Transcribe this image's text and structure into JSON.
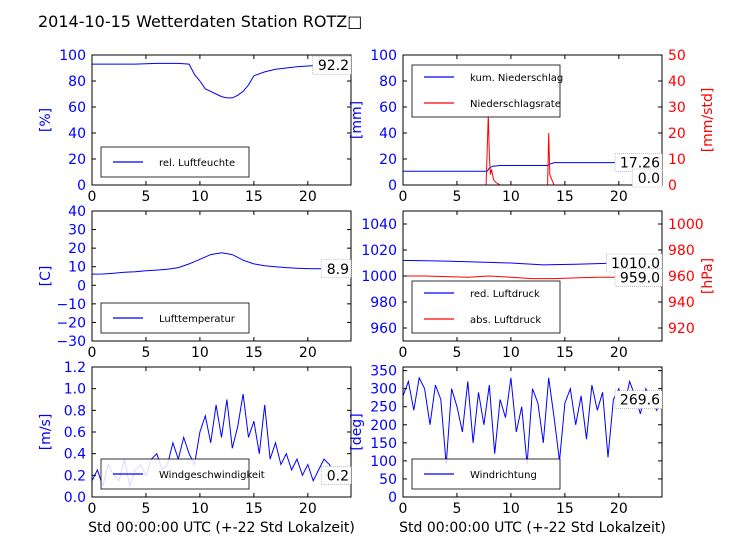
{
  "figure": {
    "title": "2014-10-15 Wetterdaten Station ROTZ□"
  },
  "colors": {
    "primary": "#0000ff",
    "secondary": "#ff0000",
    "axis": "#000000"
  },
  "chart_data": [
    {
      "id": "humidity",
      "type": "line",
      "xlim": [
        0,
        24
      ],
      "x_ticks": [
        "0",
        "5",
        "10",
        "15",
        "20"
      ],
      "ylabel": "[%]",
      "ylim": [
        0,
        100
      ],
      "y_ticks": [
        "0",
        "20",
        "40",
        "60",
        "80",
        "100"
      ],
      "legend": {
        "placement": "lower-left",
        "entries": [
          "rel. Luftfeuchte"
        ]
      },
      "last_value_label": "92.2",
      "series": [
        {
          "name": "rel. Luftfeuchte",
          "color": "#0000ff",
          "x": [
            0,
            2,
            4,
            6,
            8,
            9,
            9.5,
            10,
            10.5,
            11,
            11.5,
            12,
            12.5,
            13,
            13.5,
            14,
            14.5,
            15,
            16,
            17,
            18,
            19,
            20,
            21,
            22,
            23,
            24
          ],
          "y": [
            93,
            93,
            93,
            93.5,
            93.5,
            93,
            85,
            80,
            74,
            72,
            70,
            68,
            67,
            67,
            69,
            72,
            77,
            84,
            87,
            89,
            90,
            91,
            91.5,
            92,
            92.2,
            92.2,
            92.2
          ]
        }
      ]
    },
    {
      "id": "precip",
      "type": "line",
      "xlim": [
        0,
        24
      ],
      "x_ticks": [
        "0",
        "5",
        "10",
        "15",
        "20"
      ],
      "ylabel": "[mm]",
      "ylim": [
        0,
        100
      ],
      "y_ticks": [
        "0",
        "20",
        "40",
        "60",
        "80",
        "100"
      ],
      "y2label": "[mm/std]",
      "y2lim": [
        0,
        50
      ],
      "y2_ticks": [
        "0",
        "10",
        "20",
        "30",
        "40",
        "50"
      ],
      "legend": {
        "placement": "upper-left",
        "entries": [
          "kum. Niederschlag",
          "Niederschlagsrate"
        ]
      },
      "last_value_label": "17.26",
      "last_value_label_2": "0.0",
      "series": [
        {
          "name": "kum. Niederschlag",
          "color": "#0000ff",
          "axis": "left",
          "x": [
            0,
            7.8,
            8.0,
            8.3,
            9,
            13.4,
            13.6,
            14,
            24
          ],
          "y": [
            10.5,
            10.5,
            13,
            14.5,
            15,
            15,
            16,
            17.26,
            17.26
          ]
        },
        {
          "name": "Niederschlagsrate",
          "color": "#ff0000",
          "axis": "right",
          "x": [
            0,
            7.7,
            7.9,
            8.0,
            8.1,
            8.2,
            8.4,
            8.6,
            8.8,
            9,
            13.2,
            13.4,
            13.5,
            13.6,
            13.8,
            14,
            24
          ],
          "y": [
            0,
            0,
            27,
            12,
            4,
            6,
            2,
            1,
            0.5,
            0,
            0,
            0,
            20,
            4,
            2,
            0,
            0
          ]
        }
      ]
    },
    {
      "id": "temperature",
      "type": "line",
      "xlim": [
        0,
        24
      ],
      "x_ticks": [
        "0",
        "5",
        "10",
        "15",
        "20"
      ],
      "ylabel": "[C]",
      "ylim": [
        -30,
        40
      ],
      "y_ticks": [
        "−30",
        "−20",
        "−10",
        "0",
        "10",
        "20",
        "30",
        "40"
      ],
      "legend": {
        "placement": "lower-left",
        "entries": [
          "Lufttemperatur"
        ]
      },
      "last_value_label": "8.9",
      "series": [
        {
          "name": "Lufttemperatur",
          "color": "#0000ff",
          "x": [
            0,
            1,
            2,
            3,
            4,
            5,
            6,
            7,
            8,
            9,
            10,
            11,
            12,
            13,
            14,
            15,
            16,
            17,
            18,
            19,
            20,
            21,
            22,
            23,
            24
          ],
          "y": [
            6,
            6.1,
            6.5,
            7,
            7.3,
            7.8,
            8.2,
            8.6,
            9.5,
            11.5,
            14,
            16.5,
            17.5,
            16.5,
            13.5,
            11.5,
            10.5,
            10,
            9.5,
            9.2,
            9,
            8.9,
            8.9,
            8.9,
            8.9
          ]
        }
      ]
    },
    {
      "id": "pressure",
      "type": "line",
      "xlim": [
        0,
        24
      ],
      "x_ticks": [
        "0",
        "5",
        "10",
        "15",
        "20"
      ],
      "ylim": [
        950,
        1050
      ],
      "y_ticks": [
        "960",
        "980",
        "1000",
        "1020",
        "1040"
      ],
      "y2label": "[hPa]",
      "y2lim": [
        910,
        1010
      ],
      "y2_ticks": [
        "920",
        "940",
        "960",
        "980",
        "1000"
      ],
      "legend": {
        "placement": "lower-left",
        "entries": [
          "red. Luftdruck",
          "abs. Luftdruck"
        ]
      },
      "last_value_label": "1010.0",
      "last_value_label_2": "959.0",
      "series": [
        {
          "name": "red. Luftdruck",
          "color": "#0000ff",
          "axis": "left",
          "x": [
            0,
            2,
            4,
            6,
            8,
            10,
            12,
            13,
            14,
            16,
            18,
            20,
            22,
            24
          ],
          "y": [
            1012,
            1011.8,
            1011.5,
            1011,
            1010.5,
            1010,
            1009,
            1008.5,
            1008.8,
            1009,
            1009.5,
            1010,
            1010,
            1010
          ]
        },
        {
          "name": "abs. Luftdruck",
          "color": "#ff0000",
          "axis": "right",
          "x": [
            0,
            2,
            4,
            6,
            8,
            10,
            12,
            14,
            16,
            18,
            20,
            22,
            24
          ],
          "y": [
            960,
            960,
            959.5,
            959,
            960,
            959,
            958,
            958,
            958.5,
            959,
            959,
            959,
            959
          ]
        }
      ]
    },
    {
      "id": "windspeed",
      "type": "line",
      "xlim": [
        0,
        24
      ],
      "x_ticks": [
        "0",
        "5",
        "10",
        "15",
        "20"
      ],
      "xlabel": "Std 00:00:00 UTC (+-22 Std Lokalzeit)",
      "ylabel": "[m/s]",
      "ylim": [
        0,
        1.2
      ],
      "y_ticks": [
        "0.0",
        "0.2",
        "0.4",
        "0.6",
        "0.8",
        "1.0",
        "1.2"
      ],
      "legend": {
        "placement": "lower-left",
        "entries": [
          "Windgeschwindigkeit"
        ]
      },
      "last_value_label": "0.2",
      "series": [
        {
          "name": "Windgeschwindigkeit",
          "color": "#0000ff",
          "x": [
            0,
            0.5,
            1,
            1.5,
            2,
            2.5,
            3,
            3.5,
            4,
            4.5,
            5,
            5.5,
            6,
            6.5,
            7,
            7.5,
            8,
            8.5,
            9,
            9.5,
            10,
            10.5,
            11,
            11.5,
            12,
            12.5,
            13,
            13.5,
            14,
            14.5,
            15,
            15.5,
            16,
            16.5,
            17,
            17.5,
            18,
            18.5,
            19,
            19.5,
            20,
            20.5,
            21,
            21.5,
            22,
            22.5,
            23,
            23.5,
            24
          ],
          "y": [
            0.15,
            0.25,
            0.1,
            0.3,
            0.2,
            0.15,
            0.35,
            0.1,
            0.25,
            0.3,
            0.2,
            0.35,
            0.4,
            0.25,
            0.3,
            0.5,
            0.35,
            0.55,
            0.4,
            0.3,
            0.6,
            0.75,
            0.5,
            0.85,
            0.55,
            0.9,
            0.45,
            0.65,
            0.95,
            0.55,
            0.7,
            0.4,
            0.85,
            0.35,
            0.5,
            0.3,
            0.4,
            0.25,
            0.35,
            0.2,
            0.3,
            0.15,
            0.25,
            0.35,
            0.3,
            0.2,
            0.25,
            0.15,
            0.2
          ]
        }
      ]
    },
    {
      "id": "winddir",
      "type": "line",
      "xlim": [
        0,
        24
      ],
      "x_ticks": [
        "0",
        "5",
        "10",
        "15",
        "20"
      ],
      "xlabel": "Std 00:00:00 UTC (+-22 Std Lokalzeit)",
      "ylabel": "[deg]",
      "ylim": [
        0,
        360
      ],
      "y_ticks": [
        "0",
        "50",
        "100",
        "150",
        "200",
        "250",
        "300",
        "350"
      ],
      "legend": {
        "placement": "lower-left",
        "entries": [
          "Windrichtung"
        ]
      },
      "last_value_label": "269.6",
      "series": [
        {
          "name": "Windrichtung",
          "color": "#0000ff",
          "x": [
            0,
            0.5,
            1,
            1.5,
            2,
            2.5,
            3,
            3.5,
            4,
            4.5,
            5,
            5.5,
            6,
            6.5,
            7,
            7.5,
            8,
            8.5,
            9,
            9.5,
            10,
            10.5,
            11,
            11.5,
            12,
            12.5,
            13,
            13.5,
            14,
            14.5,
            15,
            15.5,
            16,
            16.5,
            17,
            17.5,
            18,
            18.5,
            19,
            19.5,
            20,
            20.5,
            21,
            21.5,
            22,
            22.5,
            23,
            23.5,
            24
          ],
          "y": [
            280,
            320,
            240,
            330,
            300,
            200,
            310,
            270,
            90,
            300,
            250,
            180,
            320,
            150,
            290,
            200,
            310,
            120,
            270,
            220,
            330,
            180,
            250,
            90,
            300,
            260,
            150,
            330,
            220,
            100,
            260,
            300,
            200,
            280,
            160,
            310,
            240,
            290,
            110,
            270,
            300,
            250,
            320,
            280,
            230,
            300,
            270,
            240,
            269.6
          ]
        }
      ]
    }
  ]
}
